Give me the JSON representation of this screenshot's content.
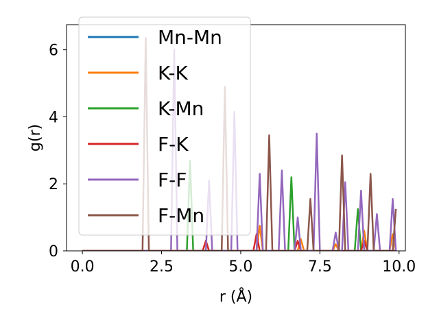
{
  "chart_data": {
    "type": "line",
    "title": "",
    "xlabel": "r (Å)",
    "ylabel": "g(r)",
    "xlim": [
      -0.5,
      10.2
    ],
    "ylim": [
      0,
      6.75
    ],
    "xticks": [
      0.0,
      2.5,
      5.0,
      7.5,
      10.0
    ],
    "xtick_labels": [
      "0.0",
      "2.5",
      "5.0",
      "7.5",
      "10.0"
    ],
    "yticks": [
      0,
      2,
      4,
      6
    ],
    "ytick_labels": [
      "0",
      "2",
      "4",
      "6"
    ],
    "grid": false,
    "legend_position": "top-left",
    "series": [
      {
        "name": "Mn-Mn",
        "color": "#1f77b4",
        "peaks": []
      },
      {
        "name": "K-K",
        "color": "#ff7f0e",
        "peaks": [
          [
            3.9,
            0.3
          ],
          [
            5.6,
            0.75
          ],
          [
            6.9,
            0.35
          ],
          [
            7.95,
            0.2
          ],
          [
            8.95,
            0.6
          ],
          [
            9.75,
            0.5
          ]
        ]
      },
      {
        "name": "K-Mn",
        "color": "#2ca02c",
        "peaks": [
          [
            3.4,
            2.7
          ],
          [
            6.6,
            2.2
          ],
          [
            8.7,
            1.25
          ]
        ]
      },
      {
        "name": "F-K",
        "color": "#d62728",
        "peaks": [
          [
            3.85,
            0.3
          ],
          [
            5.55,
            0.5
          ],
          [
            6.85,
            0.3
          ],
          [
            8.95,
            0.3
          ]
        ]
      },
      {
        "name": "F-F",
        "color": "#9467bd",
        "peaks": [
          [
            2.85,
            6.0
          ],
          [
            3.95,
            2.1
          ],
          [
            4.85,
            4.15
          ],
          [
            5.6,
            2.3
          ],
          [
            6.3,
            2.4
          ],
          [
            6.85,
            1.0
          ],
          [
            7.4,
            3.5
          ],
          [
            7.95,
            0.55
          ],
          [
            8.35,
            2.05
          ],
          [
            8.85,
            1.8
          ],
          [
            9.3,
            1.1
          ],
          [
            9.75,
            1.55
          ]
        ]
      },
      {
        "name": "F-Mn",
        "color": "#8c564b",
        "peaks": [
          [
            1.95,
            6.35
          ],
          [
            4.45,
            4.9
          ],
          [
            5.9,
            3.45
          ],
          [
            7.2,
            1.55
          ],
          [
            8.15,
            2.85
          ],
          [
            9.1,
            2.3
          ],
          [
            9.9,
            1.25
          ]
        ]
      }
    ]
  }
}
